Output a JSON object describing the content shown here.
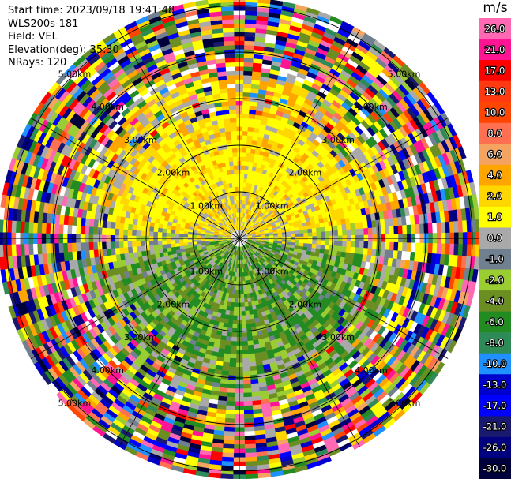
{
  "info": {
    "start_time": "Start time: 2023/09/18 19:41:48",
    "instrument": "WLS200s-181",
    "field": "Field: VEL",
    "elevation": "Elevation(deg): 35.30",
    "nrays": "NRays: 120"
  },
  "colorbar": {
    "title": "m/s",
    "ticks": [
      "26.0",
      "21.0",
      "17.0",
      "13.0",
      "10.0",
      "8.0",
      "6.0",
      "4.0",
      "2.0",
      "1.0",
      "0.0",
      "-1.0",
      "-2.0",
      "-4.0",
      "-6.0",
      "-8.0",
      "-10.0",
      "-13.0",
      "-17.0",
      "-21.0",
      "-26.0",
      "-30.0"
    ],
    "colors": [
      "#ff69b4",
      "#ff1493",
      "#ff0000",
      "#ff3a10",
      "#ff4500",
      "#ff7050",
      "#f4a460",
      "#ffa500",
      "#ffd700",
      "#ffff00",
      "#a9a9a9",
      "#708090",
      "#9acd32",
      "#6b8e23",
      "#228b22",
      "#2e8b57",
      "#1e90ff",
      "#0000cd",
      "#0000ff",
      "#191970",
      "#000080",
      "#00003a"
    ]
  },
  "chart_data": {
    "type": "heatmap",
    "title": "",
    "field": "VEL",
    "units": "m/s",
    "elevation_deg": 35.3,
    "n_rays": 120,
    "range_rings_km": [
      {
        "label": "1.00km",
        "range_km": 1.0
      },
      {
        "label": "2.00km",
        "range_km": 2.0
      },
      {
        "label": "3.00km",
        "range_km": 3.0
      },
      {
        "label": "4.00km",
        "range_km": 4.0
      },
      {
        "label": "5.00km",
        "range_km": 5.0
      }
    ],
    "description_of_pattern": {
      "positive_velocity_region": "north half within ~2.5 km",
      "negative_velocity_region": "south half within ~3 km",
      "noise_region": "beyond ~3 km"
    }
  }
}
